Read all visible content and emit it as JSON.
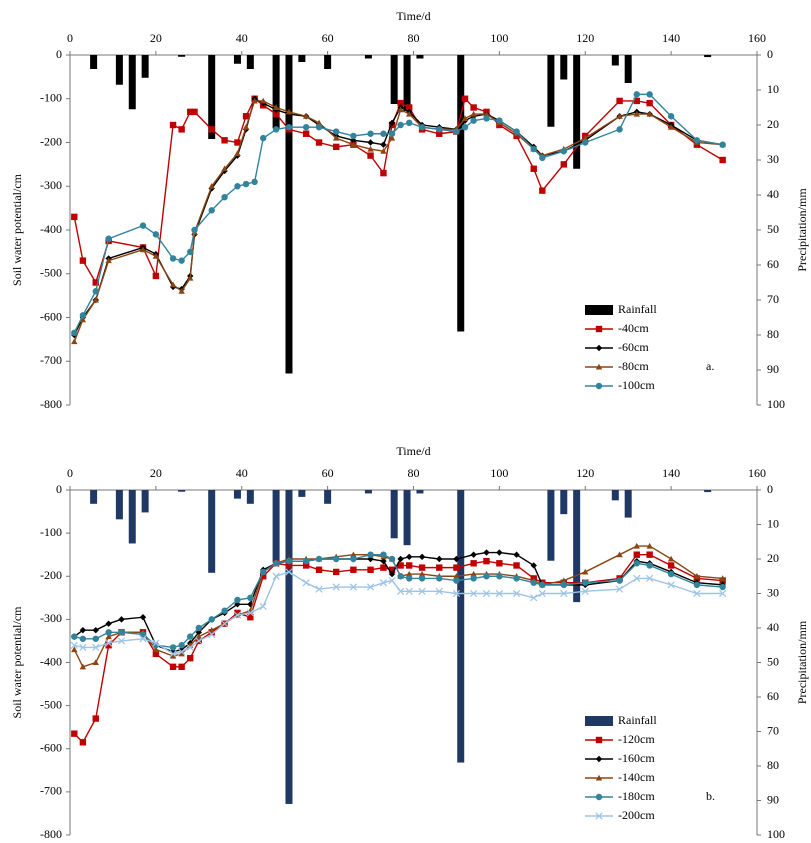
{
  "chart_data": [
    {
      "type": "bar_line",
      "x_label": "Time/d",
      "y_label": "Soil water potential/cm",
      "y2_label": "Precipitation/mm",
      "annotation": "a.",
      "xlim": [
        0,
        160
      ],
      "xticks": [
        0,
        20,
        40,
        60,
        80,
        100,
        120,
        140,
        160
      ],
      "ylim": [
        -800,
        0
      ],
      "yticks": [
        -800,
        -700,
        -600,
        -500,
        -400,
        -300,
        -200,
        -100,
        0
      ],
      "y2lim": [
        0,
        100
      ],
      "y2ticks": [
        0,
        10,
        20,
        30,
        40,
        50,
        60,
        70,
        80,
        90,
        100
      ],
      "y2_inverted": true,
      "legend": "lower right",
      "x": [
        1,
        3,
        6,
        9,
        17,
        20,
        24,
        26,
        28,
        29,
        33,
        36,
        39,
        41,
        43,
        45,
        48,
        51,
        55,
        58,
        62,
        66,
        70,
        73,
        75,
        77,
        79,
        82,
        86,
        90,
        92,
        94,
        97,
        100,
        104,
        108,
        110,
        115,
        120,
        128,
        132,
        135,
        140,
        146,
        152
      ],
      "series": [
        {
          "name": "Rainfall",
          "type": "bar",
          "axis": "y2",
          "color": "#000000",
          "x": [
            5.5,
            11.5,
            14.5,
            17.5,
            26,
            33,
            39,
            42,
            48,
            51,
            54,
            60,
            69.5,
            75.5,
            78.5,
            81.5,
            91,
            112,
            115,
            118,
            127,
            130,
            148.5
          ],
          "values": [
            4,
            8.5,
            15.5,
            6.5,
            0.5,
            24,
            2.5,
            4,
            21,
            91,
            2,
            4,
            1,
            14,
            16,
            1,
            79,
            20.5,
            7,
            32.5,
            3,
            8,
            0.6
          ]
        },
        {
          "name": "-40cm",
          "type": "line",
          "color": "#c00000",
          "marker": "square",
          "values": [
            -370,
            -470,
            -520,
            -425,
            -440,
            -505,
            -160,
            -170,
            -130,
            -130,
            -170,
            -195,
            -200,
            -140,
            -100,
            -115,
            -135,
            -170,
            -180,
            -200,
            -210,
            -205,
            -230,
            -270,
            -160,
            -110,
            -120,
            -170,
            -180,
            -175,
            -100,
            -120,
            -130,
            -160,
            -185,
            -260,
            -310,
            -250,
            -185,
            -105,
            -105,
            -110,
            -160,
            -205,
            -240
          ]
        },
        {
          "name": "-60cm",
          "type": "line",
          "color": "#000000",
          "marker": "diamond",
          "values": [
            -640,
            -600,
            -560,
            -465,
            -440,
            -455,
            -530,
            -535,
            -505,
            -410,
            -305,
            -265,
            -230,
            -170,
            -100,
            -110,
            -125,
            -135,
            -140,
            -160,
            -185,
            -195,
            -200,
            -205,
            -155,
            -120,
            -130,
            -160,
            -165,
            -170,
            -150,
            -140,
            -135,
            -150,
            -175,
            -210,
            -230,
            -220,
            -195,
            -140,
            -130,
            -135,
            -160,
            -195,
            -205
          ]
        },
        {
          "name": "-80cm",
          "type": "line",
          "color": "#8b4513",
          "marker": "triangle",
          "values": [
            -655,
            -605,
            -560,
            -470,
            -445,
            -460,
            -525,
            -540,
            -510,
            -405,
            -300,
            -260,
            -225,
            -165,
            -105,
            -105,
            -120,
            -130,
            -140,
            -155,
            -190,
            -205,
            -215,
            -220,
            -190,
            -125,
            -135,
            -165,
            -170,
            -170,
            -145,
            -135,
            -135,
            -155,
            -180,
            -215,
            -230,
            -215,
            -190,
            -140,
            -135,
            -135,
            -165,
            -200,
            -205
          ]
        },
        {
          "name": "-100cm",
          "type": "line",
          "color": "#31849b",
          "marker": "circle",
          "values": [
            -635,
            -595,
            -540,
            -420,
            -390,
            -410,
            -465,
            -470,
            -450,
            -400,
            -355,
            -325,
            -300,
            -295,
            -290,
            -190,
            -170,
            -165,
            -165,
            -165,
            -175,
            -185,
            -180,
            -180,
            -180,
            -160,
            -155,
            -165,
            -170,
            -175,
            -165,
            -150,
            -145,
            -150,
            -175,
            -215,
            -235,
            -220,
            -200,
            -170,
            -90,
            -90,
            -140,
            -195,
            -205
          ]
        }
      ]
    },
    {
      "type": "bar_line",
      "x_label": "Time/d",
      "y_label": "Soil water potential/cm",
      "y2_label": "Precipitation/mm",
      "annotation": "b.",
      "xlim": [
        0,
        160
      ],
      "xticks": [
        0,
        20,
        40,
        60,
        80,
        100,
        120,
        140,
        160
      ],
      "ylim": [
        -800,
        0
      ],
      "yticks": [
        -800,
        -700,
        -600,
        -500,
        -400,
        -300,
        -200,
        -100,
        0
      ],
      "y2lim": [
        0,
        100
      ],
      "y2ticks": [
        0,
        10,
        20,
        30,
        40,
        50,
        60,
        70,
        80,
        90,
        100
      ],
      "y2_inverted": true,
      "legend": "lower right",
      "x": [
        1,
        3,
        6,
        9,
        12,
        17,
        20,
        24,
        26,
        28,
        30,
        33,
        36,
        39,
        42,
        45,
        48,
        51,
        55,
        58,
        62,
        66,
        70,
        73,
        75,
        77,
        79,
        82,
        86,
        90,
        94,
        97,
        100,
        104,
        108,
        110,
        115,
        120,
        128,
        132,
        135,
        140,
        146,
        152
      ],
      "series": [
        {
          "name": "Rainfall",
          "type": "bar",
          "axis": "y2",
          "color": "#1f3864",
          "x": [
            5.5,
            11.5,
            14.5,
            17.5,
            26,
            33,
            39,
            42,
            48,
            51,
            54,
            60,
            69.5,
            75.5,
            78.5,
            81.5,
            91,
            112,
            115,
            118,
            127,
            130,
            148.5
          ],
          "values": [
            4,
            8.5,
            15.5,
            6.5,
            0.5,
            24,
            2.5,
            4,
            21,
            91,
            2,
            4,
            1,
            14,
            16,
            1,
            79,
            20.5,
            7,
            32.5,
            3,
            8,
            0.6
          ]
        },
        {
          "name": "-120cm",
          "type": "line",
          "color": "#c00000",
          "marker": "square",
          "values": [
            -565,
            -585,
            -530,
            -360,
            -330,
            -330,
            -380,
            -410,
            -410,
            -390,
            -350,
            -330,
            -310,
            -285,
            -295,
            -200,
            -170,
            -175,
            -175,
            -185,
            -190,
            -185,
            -185,
            -180,
            -185,
            -175,
            -175,
            -180,
            -180,
            -180,
            -170,
            -165,
            -170,
            -175,
            -205,
            -215,
            -215,
            -215,
            -205,
            -150,
            -150,
            -175,
            -205,
            -210
          ]
        },
        {
          "name": "-160cm",
          "type": "line",
          "color": "#000000",
          "marker": "diamond",
          "values": [
            -340,
            -325,
            -325,
            -310,
            -300,
            -295,
            -360,
            -375,
            -370,
            -355,
            -330,
            -300,
            -285,
            -265,
            -265,
            -185,
            -170,
            -165,
            -165,
            -160,
            -160,
            -160,
            -160,
            -165,
            -195,
            -160,
            -155,
            -155,
            -160,
            -160,
            -150,
            -145,
            -145,
            -150,
            -175,
            -220,
            -220,
            -220,
            -210,
            -165,
            -170,
            -190,
            -215,
            -220
          ]
        },
        {
          "name": "-140cm",
          "type": "line",
          "color": "#8b4513",
          "marker": "triangle",
          "values": [
            -370,
            -410,
            -400,
            -340,
            -330,
            -330,
            -370,
            -385,
            -380,
            -360,
            -340,
            -325,
            -310,
            -290,
            -280,
            -190,
            -170,
            -160,
            -160,
            -160,
            -155,
            -150,
            -150,
            -155,
            -160,
            -200,
            -195,
            -195,
            -200,
            -200,
            -195,
            -195,
            -195,
            -200,
            -210,
            -220,
            -210,
            -190,
            -150,
            -130,
            -130,
            -160,
            -200,
            -205
          ]
        },
        {
          "name": "-180cm",
          "type": "line",
          "color": "#31849b",
          "marker": "circle",
          "values": [
            -340,
            -345,
            -345,
            -330,
            -330,
            -335,
            -360,
            -365,
            -360,
            -340,
            -320,
            -300,
            -280,
            -255,
            -250,
            -190,
            -170,
            -165,
            -165,
            -160,
            -160,
            -160,
            -150,
            -150,
            -160,
            -200,
            -205,
            -205,
            -205,
            -210,
            -205,
            -200,
            -200,
            -205,
            -215,
            -220,
            -220,
            -215,
            -210,
            -170,
            -175,
            -195,
            -220,
            -225
          ]
        },
        {
          "name": "-200cm",
          "type": "line",
          "color": "#9dc3e6",
          "marker": "cross",
          "values": [
            -360,
            -365,
            -365,
            -355,
            -350,
            -345,
            -355,
            -380,
            -375,
            -365,
            -350,
            -335,
            -310,
            -290,
            -285,
            -270,
            -200,
            -190,
            -215,
            -230,
            -225,
            -225,
            -225,
            -215,
            -210,
            -235,
            -235,
            -235,
            -235,
            -240,
            -240,
            -240,
            -240,
            -240,
            -250,
            -240,
            -240,
            -235,
            -230,
            -205,
            -205,
            -220,
            -240,
            -240
          ]
        }
      ]
    }
  ]
}
